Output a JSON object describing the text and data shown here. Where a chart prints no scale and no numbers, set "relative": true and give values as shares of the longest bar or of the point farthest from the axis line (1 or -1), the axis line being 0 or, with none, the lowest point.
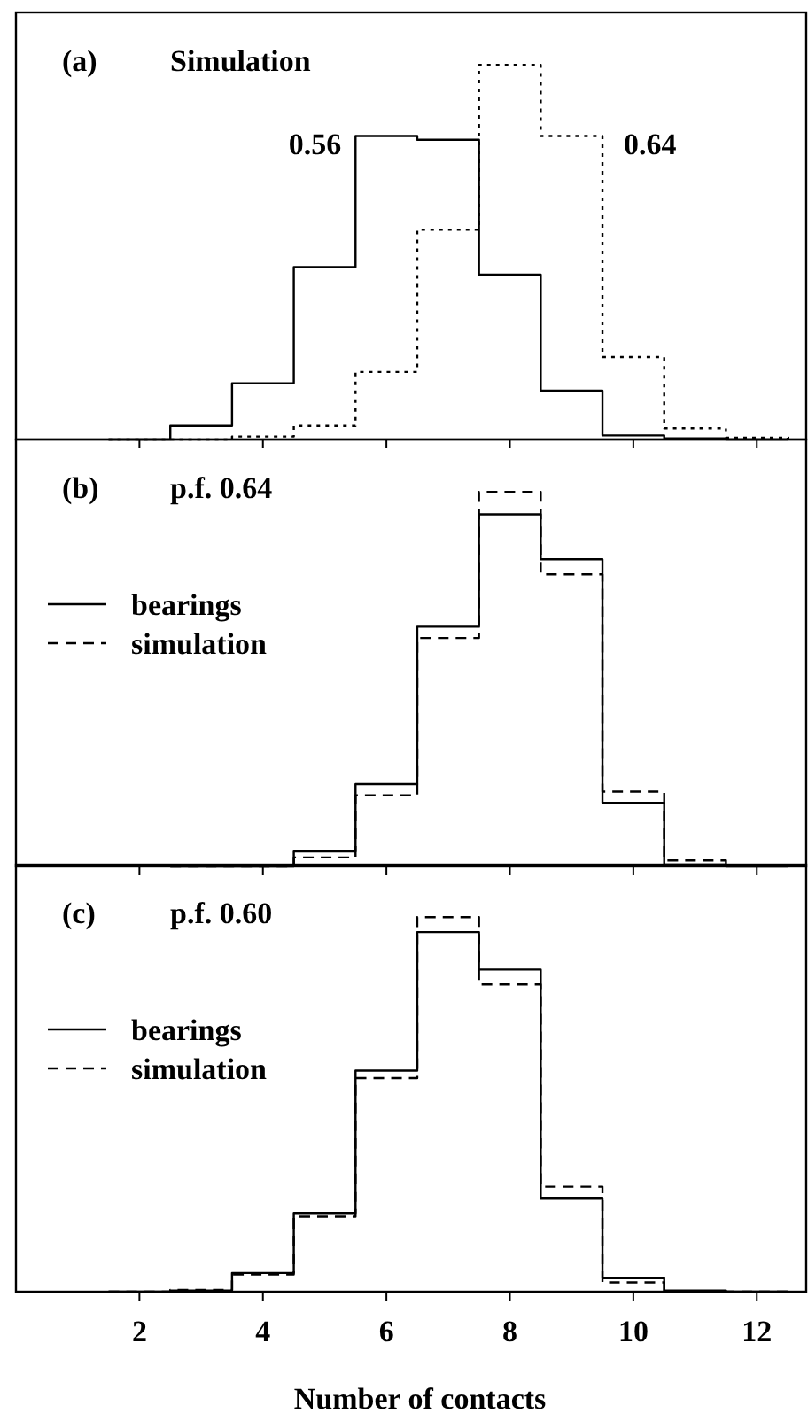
{
  "chart_data": [
    {
      "type": "step",
      "title": "Simulation",
      "annotations": [
        "(a)"
      ],
      "relative": true,
      "xlim": [
        0,
        12.8
      ],
      "xticks": [
        2,
        4,
        6,
        8,
        10,
        12
      ],
      "tick_labels": false,
      "legend": false,
      "x": [
        1.5,
        2.5,
        3.5,
        4.5,
        5.5,
        6.5,
        7.5,
        8.5,
        9.5,
        10.5,
        11.5,
        12.5
      ],
      "series": [
        {
          "name": "0.56",
          "color": "#000000",
          "line_style": "solid",
          "values": [
            0,
            0.036,
            0.15,
            0.46,
            0.81,
            0.8,
            0.44,
            0.13,
            0.011,
            0.003,
            0,
            0
          ]
        },
        {
          "name": "0.64",
          "color": "#000000",
          "line_style": "dotted",
          "values": [
            0,
            0,
            0.008,
            0.036,
            0.18,
            0.56,
            1,
            0.81,
            0.22,
            0.03,
            0.005,
            0
          ]
        }
      ]
    },
    {
      "type": "step",
      "title": "p.f. 0.64",
      "annotations": [
        "(b)"
      ],
      "relative": true,
      "xlim": [
        0,
        12.8
      ],
      "xticks": [
        2,
        4,
        6,
        8,
        10,
        12
      ],
      "tick_labels": false,
      "legend": "left",
      "x": [
        2.5,
        3.5,
        4.5,
        5.5,
        6.5,
        7.5,
        8.5,
        9.5,
        10.5,
        11.5,
        12.5
      ],
      "series": [
        {
          "name": "bearings",
          "color": "#000000",
          "line_style": "solid",
          "values": [
            0,
            0,
            0.04,
            0.22,
            0.64,
            0.94,
            0.82,
            0.17,
            0.005,
            0,
            0
          ]
        },
        {
          "name": "simulation",
          "color": "#000000",
          "line_style": "dashed",
          "values": [
            0,
            0,
            0.024,
            0.19,
            0.61,
            1,
            0.78,
            0.2,
            0.016,
            0.003,
            0
          ]
        }
      ]
    },
    {
      "type": "step",
      "title": "p.f. 0.60",
      "annotations": [
        "(c)"
      ],
      "relative": true,
      "xlabel": "Number of contacts",
      "xlim": [
        0,
        12.8
      ],
      "xticks": [
        2,
        4,
        6,
        8,
        10,
        12
      ],
      "tick_labels": "x",
      "legend": "left",
      "x": [
        1.5,
        2.5,
        3.5,
        4.5,
        5.5,
        6.5,
        7.5,
        8.5,
        9.5,
        10.5,
        11.5,
        12.5
      ],
      "series": [
        {
          "name": "bearings",
          "color": "#000000",
          "line_style": "solid",
          "values": [
            0,
            0.003,
            0.05,
            0.21,
            0.59,
            0.96,
            0.86,
            0.25,
            0.036,
            0.003,
            0,
            0
          ]
        },
        {
          "name": "simulation",
          "color": "#000000",
          "line_style": "dashed",
          "values": [
            0,
            0.005,
            0.046,
            0.2,
            0.57,
            1,
            0.82,
            0.28,
            0.025,
            0.002,
            0,
            0
          ]
        }
      ]
    }
  ]
}
